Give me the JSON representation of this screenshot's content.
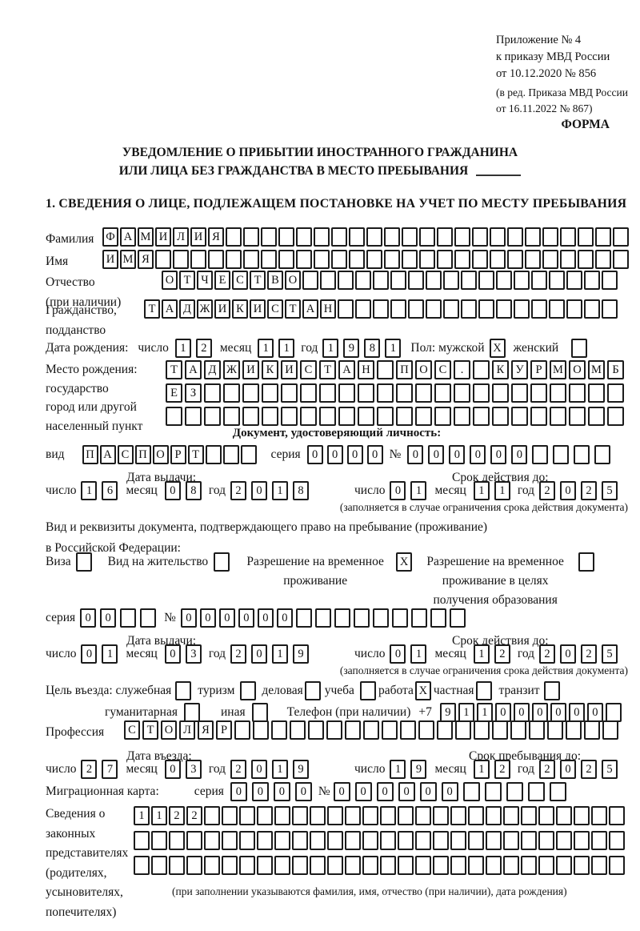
{
  "common": {
    "series_label": "серия",
    "number_label": "№",
    "issue_date_label": "Дата выдачи:",
    "valid_until_label": "Срок действия до:",
    "validity_note": "(заполняется в случае ограничения срока действия документа)",
    "day_label": "число",
    "month_label": "месяц",
    "year_label": "год"
  },
  "header": {
    "annex_line1": "Приложение № 4",
    "annex_line2": "к приказу МВД России",
    "annex_line3": "от 10.12.2020 № 856",
    "annex_note1": "(в ред. Приказа МВД России",
    "annex_note2": "от 16.11.2022 № 867)",
    "form_label": "ФОРМА",
    "title_line1": "УВЕДОМЛЕНИЕ О ПРИБЫТИИ ИНОСТРАННОГО ГРАЖДАНИНА",
    "title_line2": "ИЛИ ЛИЦА БЕЗ ГРАЖДАНСТВА В МЕСТО ПРЕБЫВАНИЯ",
    "section1_title": "1. СВЕДЕНИЯ О ЛИЦЕ, ПОДЛЕЖАЩЕМ ПОСТАНОВКЕ НА УЧЕТ ПО МЕСТУ ПРЕБЫВАНИЯ"
  },
  "person": {
    "surname_label": "Фамилия",
    "surname": {
      "v": "ФАМИЛИЯ",
      "n": 30
    },
    "name_label": "Имя",
    "name": {
      "v": "ИМЯ",
      "n": 30
    },
    "patronymic_label": "Отчество",
    "patronymic_label2": "(при наличии)",
    "patronymic": {
      "v": "ОТЧЕСТВО",
      "n": 26
    },
    "citizenship_label": "Гражданство,",
    "citizenship_label2": "подданство",
    "citizenship": {
      "v": "ТАДЖИКИСТАН",
      "n": 27
    },
    "birth_date_label": "Дата рождения:",
    "birth_day": {
      "v": "12",
      "n": 2,
      "g": 6
    },
    "birth_month": {
      "v": "11",
      "n": 2,
      "g": 6
    },
    "birth_year": {
      "v": "1981",
      "n": 4,
      "g": 6
    },
    "sex_label": "Пол: мужской",
    "sex_male": {
      "v": "X",
      "n": 1
    },
    "sex_female_label": "женский",
    "sex_female": {
      "v": "",
      "n": 1
    },
    "birth_place_label1": "Место рождения:",
    "birth_place_label2": "государство",
    "birth_place_label3": "город или другой",
    "birth_place_label4": "населенный пункт",
    "birth_place_row1": {
      "v": "ТАДЖИКИСТАН ПОС. КУРМОМБ",
      "n": 24,
      "cw": 21,
      "g": 3
    },
    "birth_place_row2": {
      "v": "ЕЗ",
      "n": 24,
      "cw": 21,
      "g": 3
    },
    "birth_place_row3": {
      "v": "",
      "n": 24,
      "cw": 21,
      "g": 3
    }
  },
  "id_doc": {
    "header": "Документ, удостоверяющий личность:",
    "type_label": "вид",
    "type": {
      "v": "ПАСПОРТ",
      "n": 10,
      "g": 2
    },
    "series": {
      "v": "0000",
      "n": 4,
      "g": 5
    },
    "number": {
      "v": "000000",
      "n": 10,
      "g": 6
    },
    "issue_day": {
      "v": "16",
      "n": 2,
      "g": 6
    },
    "issue_month": {
      "v": "08",
      "n": 2,
      "g": 6
    },
    "issue_year": {
      "v": "2018",
      "n": 4,
      "g": 6
    },
    "valid_day": {
      "v": "01",
      "n": 2,
      "g": 6
    },
    "valid_month": {
      "v": "11",
      "n": 2,
      "g": 6
    },
    "valid_year": {
      "v": "2025",
      "n": 4,
      "g": 6
    }
  },
  "permit": {
    "intro_line1": "Вид и реквизиты документа, подтверждающего право на пребывание (проживание)",
    "intro_line2": "в Российской Федерации:",
    "visa_label": "Виза",
    "visa_cb": {
      "v": "",
      "n": 1
    },
    "residence_label": "Вид на жительство",
    "residence_cb": {
      "v": "",
      "n": 1
    },
    "rvp_label1": "Разрешение на временное",
    "rvp_label2": "проживание",
    "rvp_cb": {
      "v": "X",
      "n": 1
    },
    "rvp_edu_label1": "Разрешение на временное",
    "rvp_edu_label2": "проживание в целях",
    "rvp_edu_label3": "получения образования",
    "rvp_edu_cb": {
      "v": "",
      "n": 1
    },
    "series": {
      "v": "00",
      "n": 4,
      "g": 5
    },
    "number": {
      "v": "000000",
      "n": 15,
      "g": 4
    },
    "issue_day": {
      "v": "01",
      "n": 2,
      "g": 6
    },
    "issue_month": {
      "v": "03",
      "n": 2,
      "g": 6
    },
    "issue_year": {
      "v": "2019",
      "n": 4,
      "g": 6
    },
    "valid_day": {
      "v": "01",
      "n": 2,
      "g": 6
    },
    "valid_month": {
      "v": "12",
      "n": 2,
      "g": 6
    },
    "valid_year": {
      "v": "2025",
      "n": 4,
      "g": 6
    }
  },
  "visit": {
    "purpose_label": "Цель въезда: служебная",
    "official_cb": {
      "v": "",
      "n": 1
    },
    "tourism_label": "туризм",
    "tourism_cb": {
      "v": "",
      "n": 1
    },
    "business_label": "деловая",
    "business_cb": {
      "v": "",
      "n": 1
    },
    "study_label": "учеба",
    "study_cb": {
      "v": "",
      "n": 1
    },
    "work_label": "работа",
    "work_cb": {
      "v": "X",
      "n": 1
    },
    "private_label": "частная",
    "private_cb": {
      "v": "",
      "n": 1
    },
    "transit_label": "транзит",
    "transit_cb": {
      "v": "",
      "n": 1
    },
    "humanitarian_label": "гуманитарная",
    "humanitarian_cb": {
      "v": "",
      "n": 1
    },
    "other_label": "иная",
    "other_cb": {
      "v": "",
      "n": 1
    },
    "phone_label": "Телефон (при наличии)",
    "phone_prefix": "+7",
    "phone": {
      "v": "911000000",
      "n": 10,
      "g": 3
    },
    "profession_label": "Профессия",
    "profession": {
      "v": "СТОЛЯР",
      "n": 27,
      "g": 3
    },
    "entry_date_label": "Дата въезда:",
    "entry_day": {
      "v": "27",
      "n": 2,
      "g": 6
    },
    "entry_month": {
      "v": "03",
      "n": 2,
      "g": 6
    },
    "entry_year": {
      "v": "2019",
      "n": 4,
      "g": 6
    },
    "stay_until_label": "Срок пребывания до:",
    "stay_day": {
      "v": "19",
      "n": 2,
      "g": 6
    },
    "stay_month": {
      "v": "12",
      "n": 2,
      "g": 6
    },
    "stay_year": {
      "v": "2025",
      "n": 4,
      "g": 6
    },
    "migration_card_label": "Миграционная карта:",
    "mc_series": {
      "v": "0000",
      "n": 4,
      "cw": 21,
      "g": 6
    },
    "mc_number": {
      "v": "000000",
      "n": 11,
      "cw": 21,
      "g": 6
    }
  },
  "reps": {
    "label_line1": "Сведения о",
    "label_line2": "законных",
    "label_line3": "представителях",
    "label_line4": "(родителях,",
    "label_line5": "усыновителях,",
    "label_line6": "попечителях)",
    "row1": {
      "v": "1122",
      "n": 28,
      "g": 2
    },
    "row2": {
      "v": "",
      "n": 28,
      "g": 2
    },
    "row3": {
      "v": "",
      "n": 28,
      "g": 2
    },
    "note": "(при заполнении указываются фамилия, имя, отчество (при наличии), дата рождения)"
  }
}
